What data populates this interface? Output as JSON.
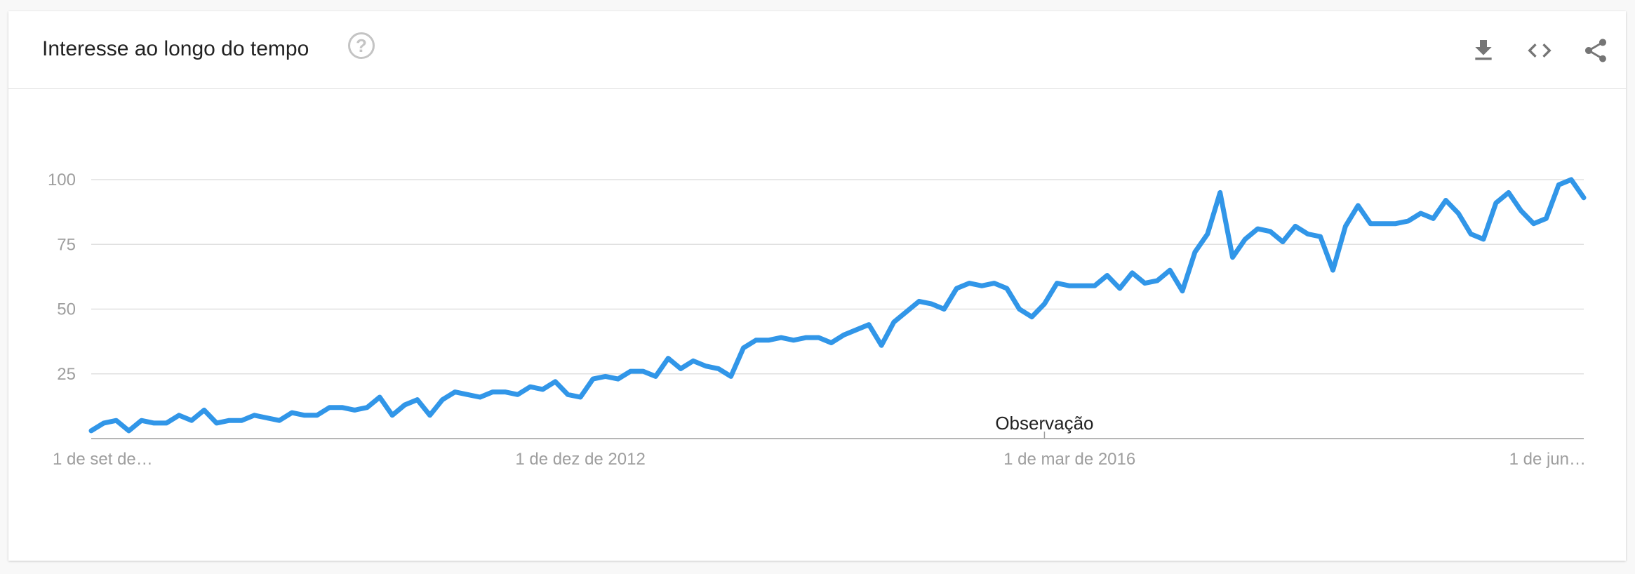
{
  "header": {
    "title": "Interesse ao longo do tempo",
    "help_icon": "help-circle-icon",
    "actions": [
      {
        "icon": "download-icon"
      },
      {
        "icon": "embed-code-icon"
      },
      {
        "icon": "share-icon"
      }
    ]
  },
  "colors": {
    "line": "#3196e8",
    "grid": "#e0e0e0",
    "axis": "#9e9e9e"
  },
  "chart_data": {
    "type": "line",
    "title": "",
    "xlabel": "",
    "ylabel": "",
    "ylim": [
      0,
      100
    ],
    "grid": true,
    "yticks": [
      25,
      50,
      75,
      100
    ],
    "xtick_labels": [
      {
        "label": "1 de set de…",
        "index": 0
      },
      {
        "label": "1 de dez de 2012",
        "index": 39
      },
      {
        "label": "1 de mar de 2016",
        "index": 78
      },
      {
        "label": "1 de jun…",
        "index": 120
      }
    ],
    "annotation": {
      "label": "Observação",
      "index": 76
    },
    "series": [
      {
        "values": [
          3,
          6,
          7,
          3,
          7,
          6,
          6,
          9,
          7,
          11,
          6,
          7,
          7,
          9,
          8,
          7,
          10,
          9,
          9,
          12,
          12,
          11,
          12,
          16,
          9,
          13,
          15,
          9,
          15,
          18,
          17,
          16,
          18,
          18,
          17,
          20,
          19,
          22,
          17,
          16,
          23,
          24,
          23,
          26,
          26,
          24,
          31,
          27,
          30,
          28,
          27,
          24,
          35,
          38,
          38,
          39,
          38,
          39,
          39,
          37,
          40,
          42,
          44,
          36,
          45,
          49,
          53,
          52,
          50,
          58,
          60,
          59,
          60,
          58,
          50,
          47,
          52,
          60,
          59,
          59,
          59,
          63,
          58,
          64,
          60,
          61,
          65,
          57,
          72,
          79,
          95,
          70,
          77,
          81,
          80,
          76,
          82,
          79,
          78,
          65,
          82,
          90,
          83,
          83,
          83,
          84,
          87,
          85,
          92,
          87,
          79,
          77,
          91,
          95,
          88,
          83,
          85,
          98,
          100,
          93
        ]
      }
    ]
  }
}
